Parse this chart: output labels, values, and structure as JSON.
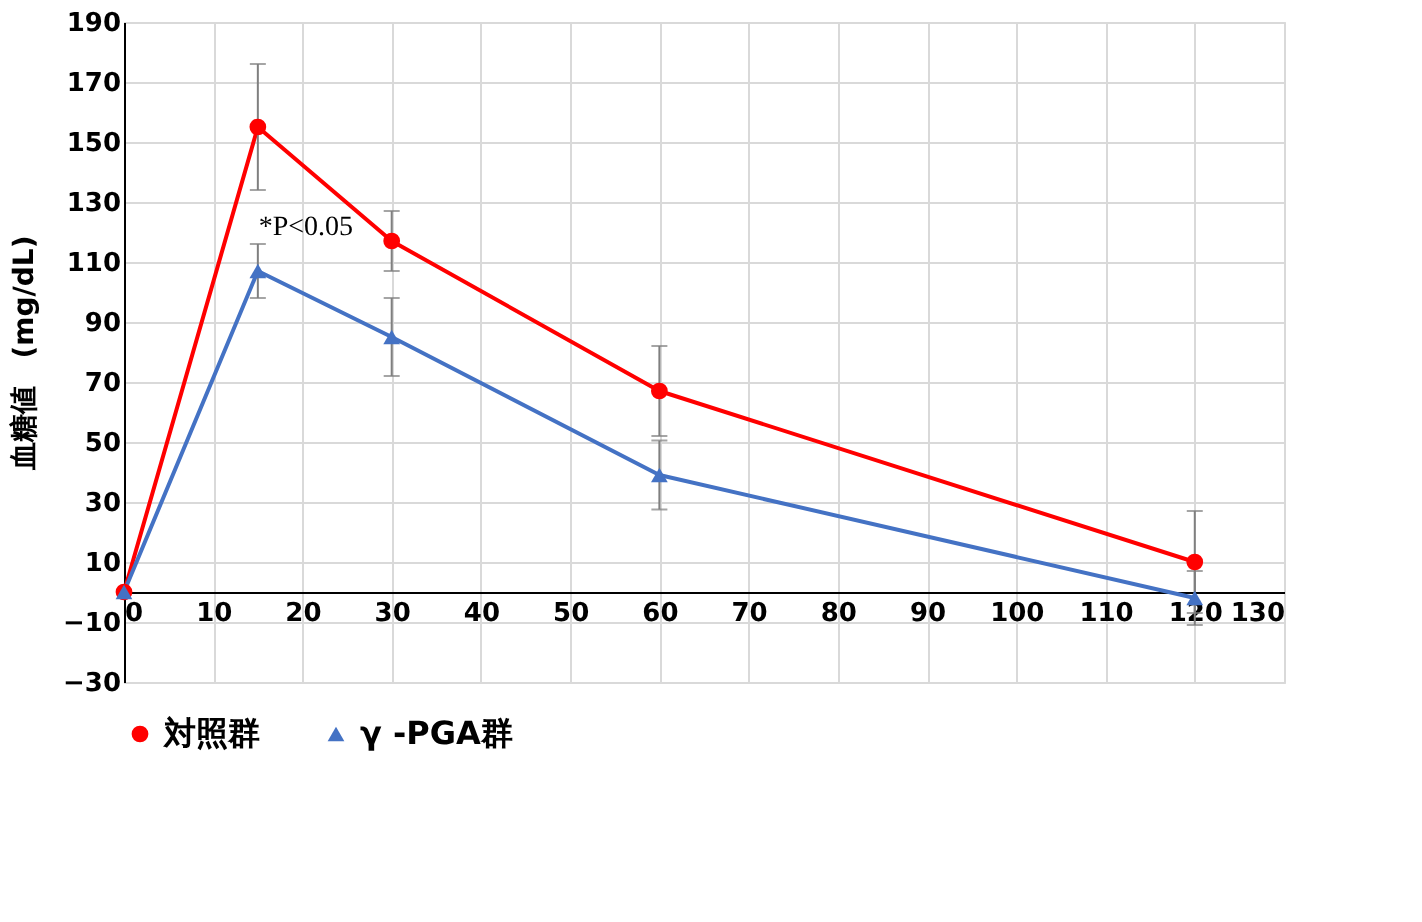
{
  "chart_data": {
    "type": "line",
    "ylabel": "血糖値　(mg/dL)",
    "x": [
      0,
      15,
      30,
      60,
      120
    ],
    "series": [
      {
        "name": "対照群",
        "color": "#ff0000",
        "marker": "circle",
        "values": [
          0,
          155,
          117,
          67,
          10
        ],
        "errors": [
          null,
          21,
          10,
          15,
          17
        ]
      },
      {
        "name": "γ -PGA群",
        "color": "#4472c4",
        "marker": "triangle",
        "values": [
          0,
          107,
          85,
          39,
          -2
        ],
        "errors": [
          null,
          9,
          13,
          11.5,
          9
        ]
      }
    ],
    "annotations": [
      {
        "text": "*P<0.05",
        "x": 15,
        "y": 107
      }
    ],
    "xlim": [
      0,
      130
    ],
    "xticks": [
      0,
      10,
      20,
      30,
      40,
      50,
      60,
      70,
      80,
      90,
      100,
      110,
      120,
      130
    ],
    "ylim": [
      -30,
      190
    ],
    "yticks": [
      -30,
      -10,
      10,
      30,
      50,
      70,
      90,
      110,
      130,
      150,
      170,
      190
    ],
    "grid": true,
    "legend": "bottom",
    "line_style": "solid"
  }
}
